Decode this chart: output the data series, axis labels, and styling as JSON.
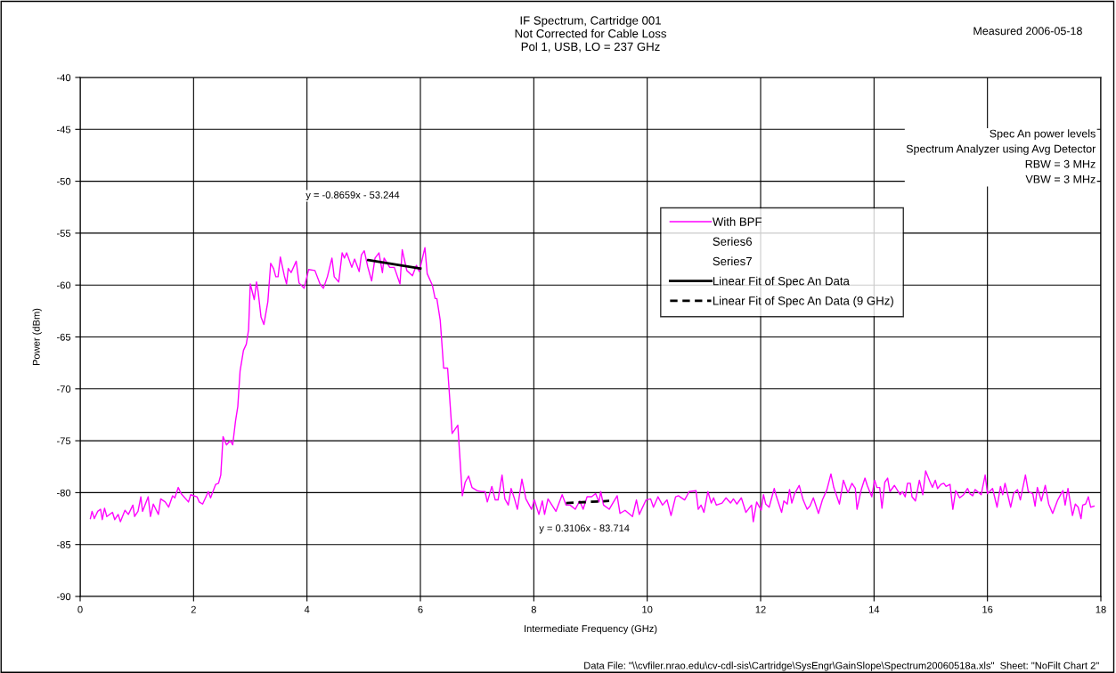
{
  "chart_data": {
    "type": "line",
    "title": "IF Spectrum, Cartridge 001\nNot Corrected for Cable Loss\nPol 1, USB, LO = 237 GHz",
    "xlabel": "Intermediate Frequency (GHz)",
    "ylabel": "Power (dBm)",
    "xlim": [
      0,
      18
    ],
    "xticks": [
      0,
      2,
      4,
      6,
      8,
      10,
      12,
      14,
      16,
      18
    ],
    "ylim": [
      -90,
      -40
    ],
    "yticks": [
      -90,
      -85,
      -80,
      -75,
      -70,
      -65,
      -60,
      -55,
      -50,
      -45,
      -40
    ],
    "grid": true,
    "legend": "right",
    "marker": "none",
    "series": [
      {
        "name": "With BPF",
        "color": "#ff00ff",
        "line_style": "solid",
        "x": [
          0.18,
          0.21,
          0.25,
          0.31,
          0.36,
          0.39,
          0.43,
          0.47,
          0.57,
          0.61,
          0.67,
          0.71,
          0.79,
          0.85,
          0.93,
          0.96,
          1.02,
          1.07,
          1.1,
          1.2,
          1.24,
          1.29,
          1.38,
          1.42,
          1.5,
          1.56,
          1.63,
          1.67,
          1.73,
          1.78,
          1.91,
          1.95,
          2.06,
          2.1,
          2.16,
          2.26,
          2.3,
          2.39,
          2.44,
          2.48,
          2.52,
          2.58,
          2.65,
          2.69,
          2.74,
          2.78,
          2.82,
          2.88,
          2.93,
          2.97,
          3.0,
          3.07,
          3.11,
          3.14,
          3.19,
          3.24,
          3.31,
          3.36,
          3.41,
          3.45,
          3.49,
          3.53,
          3.6,
          3.64,
          3.67,
          3.72,
          3.81,
          3.86,
          3.95,
          4.03,
          4.14,
          4.23,
          4.29,
          4.36,
          4.44,
          4.48,
          4.56,
          4.62,
          4.66,
          4.7,
          4.79,
          4.84,
          4.92,
          4.96,
          5.01,
          5.07,
          5.14,
          5.2,
          5.27,
          5.33,
          5.36,
          5.46,
          5.54,
          5.64,
          5.68,
          5.76,
          5.86,
          5.93,
          5.98,
          6.08,
          6.12,
          6.21,
          6.26,
          6.29,
          6.35,
          6.41,
          6.48,
          6.56,
          6.66,
          6.74,
          6.79,
          6.85,
          6.91,
          7.0,
          7.08,
          7.14,
          7.18,
          7.26,
          7.32,
          7.37,
          7.44,
          7.49,
          7.55,
          7.6,
          7.66,
          7.71,
          7.79,
          7.86,
          7.96,
          8.01,
          8.09,
          8.15,
          8.19,
          8.25,
          8.39,
          8.5,
          8.57,
          8.64,
          8.73,
          8.81,
          8.87,
          8.94,
          9.02,
          9.09,
          9.15,
          9.18,
          9.23,
          9.33,
          9.47,
          9.52,
          9.61,
          9.74,
          9.81,
          9.86,
          9.98,
          10.06,
          10.11,
          10.19,
          10.27,
          10.35,
          10.42,
          10.5,
          10.55,
          10.66,
          10.74,
          10.86,
          10.9,
          10.95,
          11.0,
          11.07,
          11.13,
          11.17,
          11.22,
          11.32,
          11.39,
          11.47,
          11.52,
          11.58,
          11.66,
          11.74,
          11.84,
          11.87,
          11.93,
          12.01,
          12.05,
          12.09,
          12.15,
          12.24,
          12.28,
          12.37,
          12.41,
          12.47,
          12.51,
          12.55,
          12.6,
          12.68,
          12.75,
          12.82,
          12.87,
          12.93,
          13.02,
          13.09,
          13.17,
          13.24,
          13.29,
          13.39,
          13.46,
          13.54,
          13.61,
          13.67,
          13.7,
          13.77,
          13.84,
          13.88,
          13.96,
          14.01,
          14.05,
          14.1,
          14.14,
          14.19,
          14.24,
          14.28,
          14.36,
          14.46,
          14.5,
          14.55,
          14.59,
          14.64,
          14.67,
          14.73,
          14.8,
          14.86,
          14.91,
          14.99,
          15.03,
          15.08,
          15.12,
          15.18,
          15.23,
          15.27,
          15.34,
          15.39,
          15.44,
          15.51,
          15.58,
          15.65,
          15.69,
          15.74,
          15.78,
          15.89,
          15.96,
          16.0,
          16.09,
          16.17,
          16.23,
          16.27,
          16.31,
          16.41,
          16.46,
          16.53,
          16.58,
          16.67,
          16.72,
          16.8,
          16.84,
          16.88,
          16.95,
          17.02,
          17.08,
          17.15,
          17.24,
          17.33,
          17.37,
          17.42,
          17.5,
          17.55,
          17.6,
          17.65,
          17.68,
          17.73,
          17.78,
          17.82,
          17.88
        ],
        "values": [
          -82.5,
          -81.8,
          -82.5,
          -81.8,
          -81.6,
          -82.6,
          -81.5,
          -82.3,
          -81.9,
          -82.6,
          -82.1,
          -82.8,
          -81.7,
          -82.1,
          -81.2,
          -82.3,
          -81.8,
          -80.4,
          -81.8,
          -80.4,
          -82.3,
          -81.1,
          -82.1,
          -80.6,
          -80.9,
          -81.4,
          -80.3,
          -80.5,
          -79.5,
          -80.1,
          -80.9,
          -80.2,
          -80.4,
          -80.9,
          -81.1,
          -79.9,
          -80.5,
          -79.2,
          -79.1,
          -78.3,
          -74.6,
          -75.4,
          -75.0,
          -75.4,
          -73.1,
          -71.7,
          -68.3,
          -66.3,
          -65.7,
          -64.3,
          -59.9,
          -61.4,
          -59.7,
          -60.7,
          -63.1,
          -63.8,
          -61.6,
          -57.9,
          -58.4,
          -59.2,
          -59.2,
          -57.3,
          -59.1,
          -59.9,
          -58.4,
          -58.8,
          -57.7,
          -59.8,
          -60.3,
          -58.5,
          -58.6,
          -59.9,
          -60.3,
          -59.2,
          -57.4,
          -59.2,
          -59.7,
          -56.9,
          -57.4,
          -56.9,
          -58.3,
          -57.5,
          -58.7,
          -57.1,
          -56.7,
          -58.2,
          -59.6,
          -57.4,
          -56.9,
          -58.8,
          -57.4,
          -58.3,
          -58.3,
          -59.9,
          -56.6,
          -58.6,
          -59.1,
          -58.1,
          -58.7,
          -56.4,
          -58.9,
          -60.0,
          -61.3,
          -61.3,
          -63.4,
          -68.0,
          -68.0,
          -74.3,
          -73.5,
          -80.3,
          -79.0,
          -78.4,
          -79.5,
          -79.8,
          -79.9,
          -79.9,
          -80.9,
          -79.4,
          -80.7,
          -80.7,
          -78.3,
          -80.6,
          -81.2,
          -79.6,
          -80.6,
          -81.6,
          -78.7,
          -80.6,
          -81.6,
          -80.7,
          -82.1,
          -80.8,
          -82.1,
          -80.6,
          -81.8,
          -80.2,
          -81.2,
          -81.2,
          -81.6,
          -80.8,
          -81.6,
          -80.4,
          -80.4,
          -80.1,
          -80.9,
          -79.9,
          -81.2,
          -81.6,
          -80.3,
          -82.0,
          -81.7,
          -82.3,
          -80.7,
          -82.1,
          -80.7,
          -80.6,
          -81.4,
          -80.4,
          -81.2,
          -80.7,
          -82.2,
          -80.4,
          -80.3,
          -80.7,
          -79.9,
          -79.8,
          -81.6,
          -81.2,
          -81.9,
          -79.9,
          -81.0,
          -80.5,
          -81.2,
          -81.0,
          -80.5,
          -81.0,
          -80.6,
          -81.1,
          -80.5,
          -81.9,
          -81.2,
          -82.8,
          -80.9,
          -81.7,
          -80.2,
          -81.1,
          -81.4,
          -79.6,
          -80.4,
          -81.9,
          -80.8,
          -81.1,
          -79.7,
          -81.0,
          -80.1,
          -79.3,
          -80.7,
          -81.6,
          -81.3,
          -80.5,
          -82.0,
          -80.7,
          -79.7,
          -78.2,
          -79.5,
          -81.1,
          -78.8,
          -80.0,
          -79.1,
          -79.6,
          -81.6,
          -79.8,
          -78.6,
          -79.3,
          -80.4,
          -78.8,
          -79.5,
          -79.5,
          -81.5,
          -79.0,
          -78.6,
          -79.9,
          -79.3,
          -80.2,
          -79.9,
          -80.4,
          -79.1,
          -79.1,
          -80.4,
          -80.8,
          -78.8,
          -80.2,
          -77.9,
          -79.0,
          -79.5,
          -78.8,
          -79.6,
          -79.2,
          -79.1,
          -79.4,
          -79.2,
          -81.6,
          -79.8,
          -80.5,
          -80.2,
          -79.6,
          -80.1,
          -80.3,
          -79.7,
          -80.2,
          -78.3,
          -80.1,
          -79.6,
          -81.4,
          -79.4,
          -80.2,
          -79.1,
          -81.4,
          -80.1,
          -79.7,
          -80.7,
          -78.3,
          -79.9,
          -80.1,
          -81.3,
          -79.5,
          -80.8,
          -79.3,
          -81.1,
          -82.0,
          -80.7,
          -79.8,
          -81.2,
          -79.6,
          -82.2,
          -81.1,
          -81.4,
          -82.5,
          -81.2,
          -81.1,
          -80.4,
          -81.4,
          -81.3
        ]
      },
      {
        "name": "Series6",
        "color": null
      },
      {
        "name": "Series7",
        "color": null
      },
      {
        "name": "Linear Fit of Spec An Data",
        "color": "#000000",
        "line_style": "solid",
        "x": [
          5.08,
          6.0
        ],
        "values": [
          -57.6,
          -58.4
        ]
      },
      {
        "name": "Linear Fit of Spec An Data (9 GHz)",
        "color": "#000000",
        "line_style": "dashed",
        "x": [
          8.57,
          9.33
        ],
        "values": [
          -81.0,
          -80.8
        ]
      }
    ],
    "annotations": [
      "y = -0.8659x - 53.244",
      "y = 0.3106x - 83.714",
      "Measured 2006-05-18",
      "Spec An power levels\nSpectrum Analyzer using Avg Detector\nRBW = 3 MHz\nVBW = 3 MHz",
      "Data File: \"\\\\cvfiler.nrao.edu\\cv-cdl-sis\\Cartridge\\SysEngr\\GainSlope\\Spectrum20060518a.xls\"  Sheet: \"NoFilt Chart 2\""
    ]
  }
}
